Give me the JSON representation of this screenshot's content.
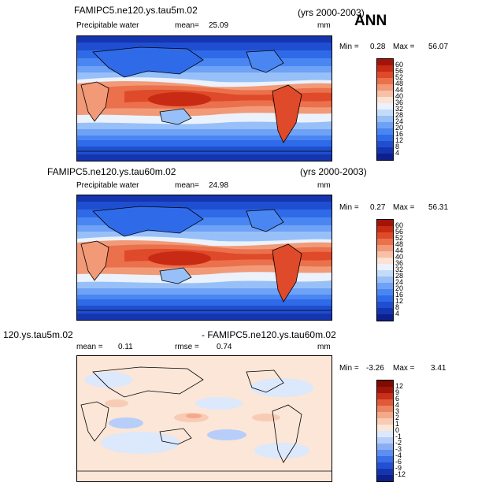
{
  "season": "ANN",
  "panels": [
    {
      "case": "FAMIPC5.ne120.ys.tau5m.02",
      "years": "(yrs 2000-2003)",
      "variable": "Precipitable water",
      "mean_label": "mean=",
      "mean_value": "25.09",
      "units": "mm",
      "min_label": "Min =",
      "min_value": "0.28",
      "max_label": "Max =",
      "max_value": "56.07",
      "colorbar_labels": [
        "60",
        "56",
        "52",
        "48",
        "44",
        "40",
        "36",
        "32",
        "28",
        "24",
        "20",
        "16",
        "12",
        "8",
        "4"
      ]
    },
    {
      "case": "FAMIPC5.ne120.ys.tau60m.02",
      "years": "(yrs 2000-2003)",
      "variable": "Precipitable water",
      "mean_label": "mean=",
      "mean_value": "24.98",
      "units": "mm",
      "min_label": "Min =",
      "min_value": "0.27",
      "max_label": "Max =",
      "max_value": "56.31",
      "colorbar_labels": [
        "60",
        "56",
        "52",
        "48",
        "44",
        "40",
        "36",
        "32",
        "28",
        "24",
        "20",
        "16",
        "12",
        "8",
        "4"
      ]
    },
    {
      "case": "120.ys.tau5m.02",
      "years": "- FAMIPC5.ne120.ys.tau60m.02",
      "mean_label": "mean =",
      "mean_value": "0.11",
      "rmse_label": "rmse =",
      "rmse_value": "0.74",
      "units": "mm",
      "min_label": "Min =",
      "min_value": "-3.26",
      "max_label": "Max =",
      "max_value": "3.41",
      "colorbar_labels": [
        "12",
        "9",
        "6",
        "4",
        "3",
        "2",
        "1",
        "0",
        "-1",
        "-2",
        "-3",
        "-4",
        "-6",
        "-9",
        "-12"
      ]
    }
  ],
  "colors": {
    "abs_scale": [
      "#0c1f8c",
      "#1535b0",
      "#1f4fd0",
      "#2f6ae8",
      "#4a86f2",
      "#6ea2f6",
      "#98c0f8",
      "#c4dbfa",
      "#ebf2fc",
      "#fbe2d2",
      "#f8c0a6",
      "#f29a78",
      "#ea714c",
      "#df4a2a",
      "#c92a14",
      "#a21408"
    ],
    "diff_scale": [
      "#0c1f8c",
      "#1535b0",
      "#2350d0",
      "#3a6ee8",
      "#5e8ef2",
      "#8aaef6",
      "#b6cef9",
      "#dce8fb",
      "#fbe6d8",
      "#f8cbb4",
      "#f3a98c",
      "#ec8462",
      "#e05a3a",
      "#c8301a",
      "#a01508",
      "#800a04"
    ]
  }
}
